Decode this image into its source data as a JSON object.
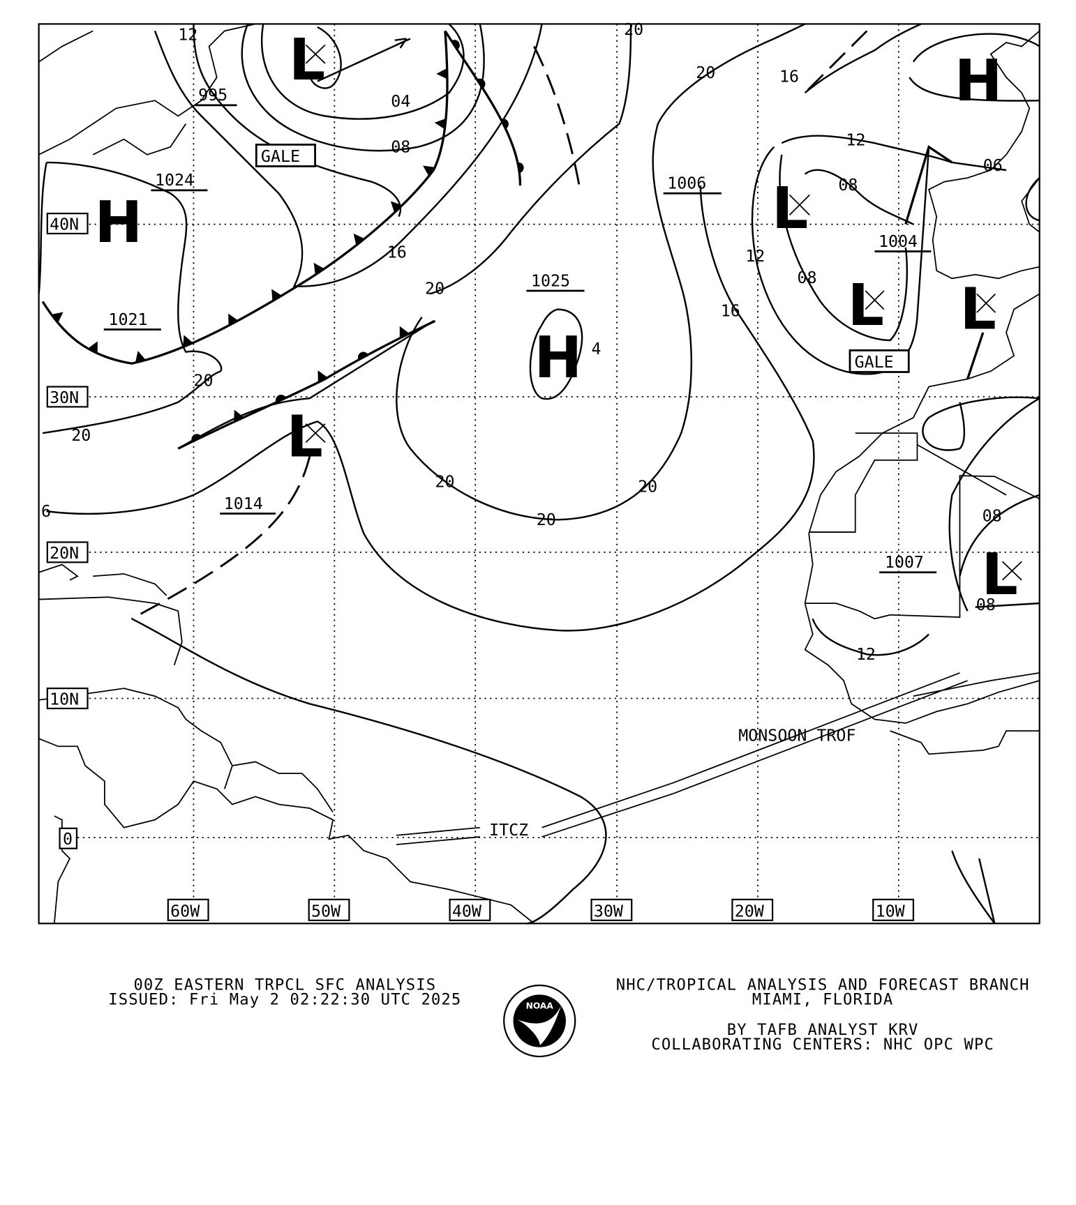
{
  "map": {
    "latitude_labels": [
      "40N",
      "30N",
      "20N",
      "10N",
      "0"
    ],
    "longitude_labels": [
      "60W",
      "50W",
      "40W",
      "30W",
      "20W",
      "10W"
    ],
    "pressure_centers": [
      {
        "type": "H",
        "value": "1024"
      },
      {
        "type": "L",
        "value": "995"
      },
      {
        "type": "H",
        "value": ""
      },
      {
        "type": "L",
        "value": "1006"
      },
      {
        "type": "L",
        "value": "1004"
      },
      {
        "type": "L",
        "value": ""
      },
      {
        "type": "H",
        "value": "1025"
      },
      {
        "type": "L",
        "value": "1014"
      },
      {
        "type": "H",
        "value": "1021"
      },
      {
        "type": "L",
        "value": "1007"
      }
    ],
    "isobar_labels": [
      "12",
      "04",
      "08",
      "16",
      "20",
      "20",
      "20",
      "6",
      "20",
      "20",
      "20",
      "16",
      "12",
      "08",
      "08",
      "12",
      "16",
      "20",
      "20",
      "06",
      "08",
      "08",
      "12",
      "4"
    ],
    "annotations": {
      "gale_1": "GALE",
      "gale_2": "GALE",
      "itcz": "ITCZ",
      "monsoon": "MONSOON TROF"
    }
  },
  "footer": {
    "title": "00Z EASTERN TRPCL SFC ANALYSIS",
    "issued": "ISSUED: Fri May 2 02:22:30 UTC 2025",
    "org": "NHC/TROPICAL ANALYSIS AND FORECAST BRANCH",
    "location": "MIAMI,  FLORIDA",
    "analyst": "BY TAFB ANALYST  KRV",
    "centers": "COLLABORATING CENTERS: NHC OPC WPC",
    "logo_text": "NOAA"
  }
}
